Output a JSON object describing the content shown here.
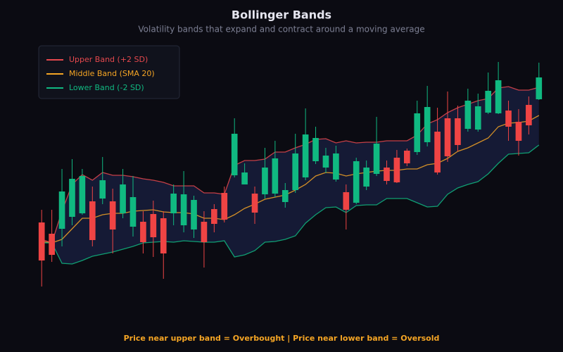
{
  "chart_data": {
    "type": "candlestick",
    "title": "Bollinger Bands",
    "subtitle": "Volatility bands that expand and contract around a moving average",
    "annotation": "Price near upper band = Overbought | Price near lower band = Oversold",
    "categories": [
      null,
      null,
      null,
      null,
      null,
      null,
      null,
      null,
      null,
      null,
      null,
      null,
      null,
      null,
      null,
      null,
      null,
      null,
      null,
      null,
      null,
      null,
      null,
      null,
      null,
      null,
      null,
      null,
      null,
      null,
      null,
      null,
      null,
      null,
      null,
      null,
      null,
      null,
      null,
      null,
      null,
      null,
      null,
      null,
      null,
      null,
      null,
      null,
      null,
      null
    ],
    "open": [
      144,
      128,
      135,
      152,
      157,
      174,
      178,
      174,
      157,
      138,
      145,
      156,
      150,
      157,
      140,
      134,
      145,
      163,
      186,
      211,
      198,
      185,
      184,
      185,
      173,
      190,
      208,
      231,
      222,
      205,
      187,
      172,
      195,
      213,
      222,
      236,
      246,
      244,
      258,
      273,
      292,
      292,
      277,
      276,
      300,
      299,
      303,
      287,
      311,
      319
    ],
    "high": [
      162,
      162,
      220,
      234,
      220,
      195,
      237,
      192,
      220,
      210,
      160,
      175,
      160,
      198,
      217,
      182,
      160,
      170,
      195,
      292,
      228,
      195,
      250,
      260,
      200,
      270,
      306,
      280,
      250,
      253,
      198,
      236,
      232,
      294,
      232,
      247,
      249,
      317,
      338,
      307,
      330,
      310,
      334,
      327,
      357,
      372,
      317,
      305,
      323,
      371
    ],
    "low": [
      53,
      88,
      110,
      140,
      155,
      110,
      170,
      100,
      150,
      124,
      100,
      95,
      64,
      140,
      130,
      122,
      80,
      130,
      144,
      208,
      198,
      142,
      178,
      180,
      165,
      186,
      204,
      227,
      214,
      202,
      134,
      170,
      190,
      210,
      198,
      200,
      224,
      240,
      252,
      212,
      230,
      245,
      273,
      273,
      298,
      298,
      260,
      239,
      269,
      318
    ],
    "close": [
      90,
      98,
      188,
      206,
      210,
      119,
      204,
      134,
      198,
      180,
      116,
      123,
      100,
      185,
      184,
      176,
      116,
      142,
      148,
      270,
      215,
      158,
      222,
      235,
      190,
      242,
      269,
      264,
      239,
      242,
      162,
      231,
      222,
      256,
      203,
      201,
      228,
      299,
      308,
      215,
      238,
      254,
      317,
      309,
      331,
      346,
      280,
      260,
      282,
      350
    ],
    "up_color": "#10b981",
    "down_color": "#ef4444",
    "series": [
      {
        "name": "Upper Band (+2 SD)",
        "color": "#e5484d",
        "values": [
          120,
          115,
          160,
          198,
          212,
          204,
          215,
          211,
          211,
          209,
          206,
          204,
          201,
          196,
          196,
          196,
          186,
          186,
          184,
          225,
          232,
          232,
          234,
          244,
          244,
          250,
          255,
          262,
          263,
          257,
          260,
          257,
          258,
          258,
          260,
          260,
          260,
          268,
          284,
          290,
          300,
          307,
          312,
          317,
          320,
          335,
          337,
          332,
          332,
          336
        ]
      },
      {
        "name": "Middle Band (SMA 20)",
        "color": "#f5a524",
        "values": [
          117,
          115,
          120,
          135,
          150,
          150,
          155,
          157,
          157,
          160,
          161,
          162,
          159,
          158,
          158,
          156,
          150,
          150,
          148,
          155,
          164,
          170,
          177,
          180,
          183,
          190,
          198,
          210,
          215,
          214,
          210,
          213,
          215,
          217,
          218,
          218,
          220,
          220,
          226,
          228,
          235,
          245,
          250,
          257,
          264,
          280,
          285,
          286,
          288,
          296
        ]
      },
      {
        "name": "Lower Band (-2 SD)",
        "color": "#10b981",
        "values": [
          115,
          115,
          86,
          85,
          90,
          96,
          99,
          102,
          106,
          110,
          115,
          116,
          117,
          116,
          118,
          117,
          116,
          116,
          118,
          95,
          98,
          104,
          116,
          117,
          120,
          125,
          143,
          155,
          165,
          166,
          158,
          168,
          169,
          169,
          178,
          178,
          178,
          172,
          166,
          167,
          184,
          193,
          198,
          202,
          213,
          228,
          241,
          242,
          243,
          254
        ]
      }
    ],
    "band_fill": "#1a2145",
    "ylim": [
      0,
      400
    ],
    "legend": "upper-left"
  }
}
